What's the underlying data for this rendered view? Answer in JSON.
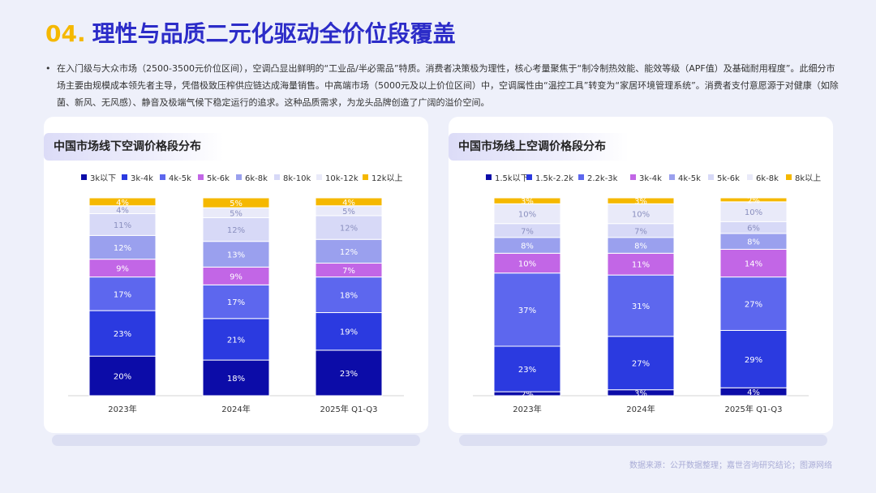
{
  "header": {
    "number": "04.",
    "title": "理性与品质二元化驱动全价位段覆盖"
  },
  "description": {
    "bullet": "•",
    "text": "在入门级与大众市场（2500-3500元价位区间），空调凸显出鲜明的“工业品/半必需品”特质。消费者决策极为理性，核心考量聚焦于“制冷制热效能、能效等级（APF值）及基础耐用程度”。此细分市场主要由规模成本领先者主导，凭借极致压榨供应链达成海量销售。中高端市场（5000元及以上价位区间）中，空调属性由“温控工具”转变为“家居环境管理系统”。消费者支付意愿源于对健康（如除菌、新风、无风感）、静音及极端气候下稳定运行的追求。这种品质需求，为龙头品牌创造了广阔的溢价空间。"
  },
  "chart_data": [
    {
      "type": "bar",
      "stacked": true,
      "percent": true,
      "title": "中国市场线下空调价格段分布",
      "legend_position": "top",
      "categories": [
        "2023年",
        "2024年",
        "2025年 Q1-Q3"
      ],
      "series": [
        {
          "name": "3k以下",
          "color": "#0c0ca8",
          "values": [
            20,
            18,
            23
          ]
        },
        {
          "name": "3k-4k",
          "color": "#2b3ae0",
          "values": [
            23,
            21,
            19
          ]
        },
        {
          "name": "4k-5k",
          "color": "#5d67ee",
          "values": [
            17,
            17,
            18
          ]
        },
        {
          "name": "5k-6k",
          "color": "#c266e6",
          "values": [
            9,
            9,
            7
          ]
        },
        {
          "name": "6k-8k",
          "color": "#9aa0ee",
          "values": [
            12,
            13,
            12
          ]
        },
        {
          "name": "8k-10k",
          "color": "#d7d9f7",
          "values": [
            11,
            12,
            12
          ]
        },
        {
          "name": "10k-12k",
          "color": "#e9eaf9",
          "values": [
            4,
            5,
            5
          ]
        },
        {
          "name": "12k以上",
          "color": "#f5b800",
          "values": [
            4,
            5,
            4
          ]
        }
      ]
    },
    {
      "type": "bar",
      "stacked": true,
      "percent": true,
      "title": "中国市场线上空调价格段分布",
      "legend_position": "top",
      "categories": [
        "2023年",
        "2024年",
        "2025年 Q1-Q3"
      ],
      "series": [
        {
          "name": "1.5k以下",
          "color": "#0c0ca8",
          "values": [
            2,
            3,
            4
          ]
        },
        {
          "name": "1.5k-2.2k",
          "color": "#2b3ae0",
          "values": [
            23,
            27,
            29
          ]
        },
        {
          "name": "2.2k-3k",
          "color": "#5d67ee",
          "values": [
            37,
            31,
            27
          ]
        },
        {
          "name": "3k-4k",
          "color": "#c266e6",
          "values": [
            10,
            11,
            14
          ]
        },
        {
          "name": "4k-5k",
          "color": "#9aa0ee",
          "values": [
            8,
            8,
            8
          ]
        },
        {
          "name": "5k-6k",
          "color": "#d7d9f7",
          "values": [
            7,
            7,
            6
          ]
        },
        {
          "name": "6k-8k",
          "color": "#e9eaf9",
          "values": [
            10,
            10,
            10
          ]
        },
        {
          "name": "8k以上",
          "color": "#f5b800",
          "values": [
            3,
            3,
            2
          ]
        }
      ]
    }
  ],
  "footer": {
    "source": "数据来源：公开数据整理；嘉世咨询研究结论；图源网络"
  }
}
